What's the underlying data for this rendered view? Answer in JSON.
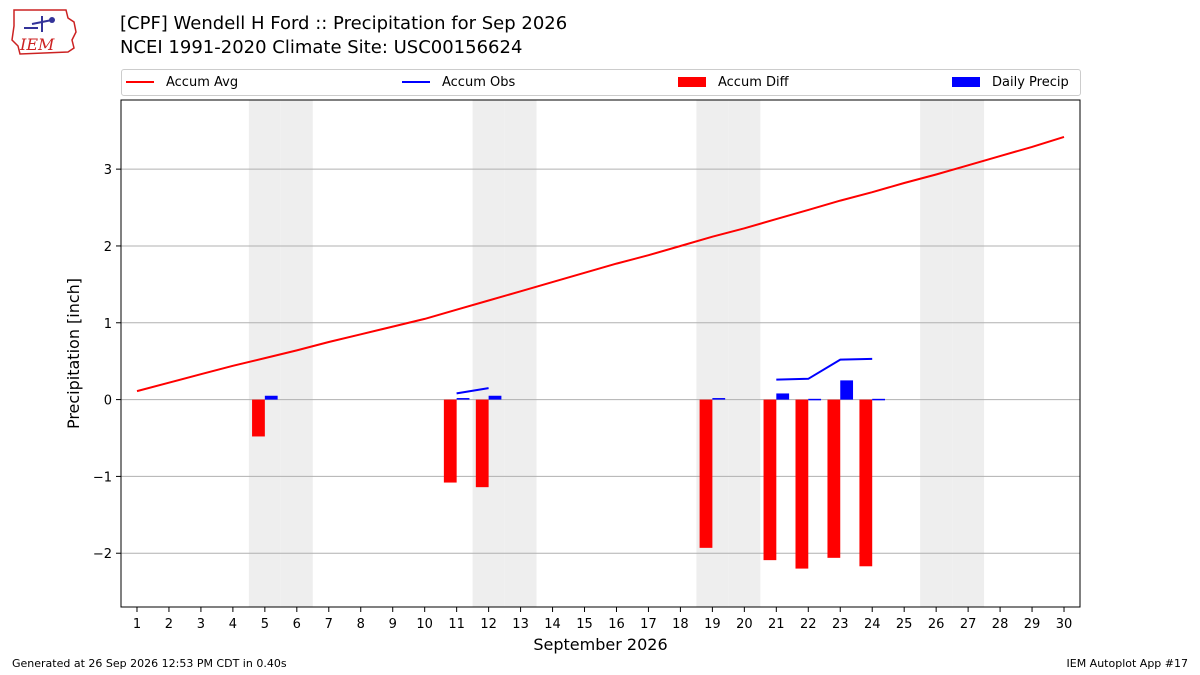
{
  "header": {
    "title_line1": "[CPF] Wendell H Ford :: Precipitation for Sep 2026",
    "title_line2": "NCEI 1991-2020 Climate Site: USC00156624",
    "logo_text": "IEM"
  },
  "legend": {
    "accum_avg": "Accum Avg",
    "accum_obs": "Accum Obs",
    "accum_diff": "Accum Diff",
    "daily_precip": "Daily Precip"
  },
  "colors": {
    "accum_avg": "#ff0000",
    "accum_obs": "#0000ff",
    "accum_diff": "#ff0000",
    "daily_precip": "#0000ff",
    "weekend_shade": "#eeeeee",
    "grid": "#b0b0b0"
  },
  "chart_data": {
    "type": "bar",
    "xlabel": "September 2026",
    "ylabel": "Precipitation [inch]",
    "x": [
      1,
      2,
      3,
      4,
      5,
      6,
      7,
      8,
      9,
      10,
      11,
      12,
      13,
      14,
      15,
      16,
      17,
      18,
      19,
      20,
      21,
      22,
      23,
      24,
      25,
      26,
      27,
      28,
      29,
      30
    ],
    "xlim": [
      0.5,
      30.5
    ],
    "ylim": [
      -2.7,
      3.9
    ],
    "yticks": [
      -2,
      -1,
      0,
      1,
      2,
      3
    ],
    "ytick_labels": [
      "−2",
      "−1",
      "0",
      "1",
      "2",
      "3"
    ],
    "grid": "horizontal",
    "legend_position": "top",
    "weekend_days": [
      5,
      6,
      12,
      13,
      19,
      20,
      26,
      27
    ],
    "series": [
      {
        "name": "Accum Avg",
        "kind": "line",
        "x": [
          1,
          2,
          3,
          4,
          5,
          6,
          7,
          8,
          9,
          10,
          11,
          12,
          13,
          14,
          15,
          16,
          17,
          18,
          19,
          20,
          21,
          22,
          23,
          24,
          25,
          26,
          27,
          28,
          29,
          30
        ],
        "values": [
          0.11,
          0.22,
          0.33,
          0.44,
          0.54,
          0.64,
          0.75,
          0.85,
          0.95,
          1.05,
          1.17,
          1.29,
          1.41,
          1.53,
          1.65,
          1.77,
          1.88,
          2.0,
          2.12,
          2.23,
          2.35,
          2.47,
          2.59,
          2.7,
          2.82,
          2.93,
          3.05,
          3.17,
          3.29,
          3.42
        ]
      },
      {
        "name": "Accum Obs",
        "kind": "line",
        "segments": [
          {
            "x": [
              11,
              12
            ],
            "values": [
              0.08,
              0.15
            ]
          },
          {
            "x": [
              21,
              22,
              23,
              24
            ],
            "values": [
              0.26,
              0.27,
              0.52,
              0.53
            ]
          }
        ]
      },
      {
        "name": "Accum Diff",
        "kind": "bar",
        "x": [
          5,
          11,
          12,
          19,
          21,
          22,
          23,
          24
        ],
        "values": [
          -0.48,
          -1.08,
          -1.14,
          -1.93,
          -2.09,
          -2.2,
          -2.06,
          -2.17
        ]
      },
      {
        "name": "Daily Precip",
        "kind": "bar",
        "x": [
          5,
          11,
          12,
          19,
          21,
          22,
          23,
          24
        ],
        "values": [
          0.05,
          0.02,
          0.05,
          0.02,
          0.08,
          0.01,
          0.25,
          0.01
        ]
      }
    ]
  },
  "footer": {
    "generated": "Generated at 26 Sep 2026 12:53 PM CDT in 0.40s",
    "app": "IEM Autoplot App #17"
  }
}
